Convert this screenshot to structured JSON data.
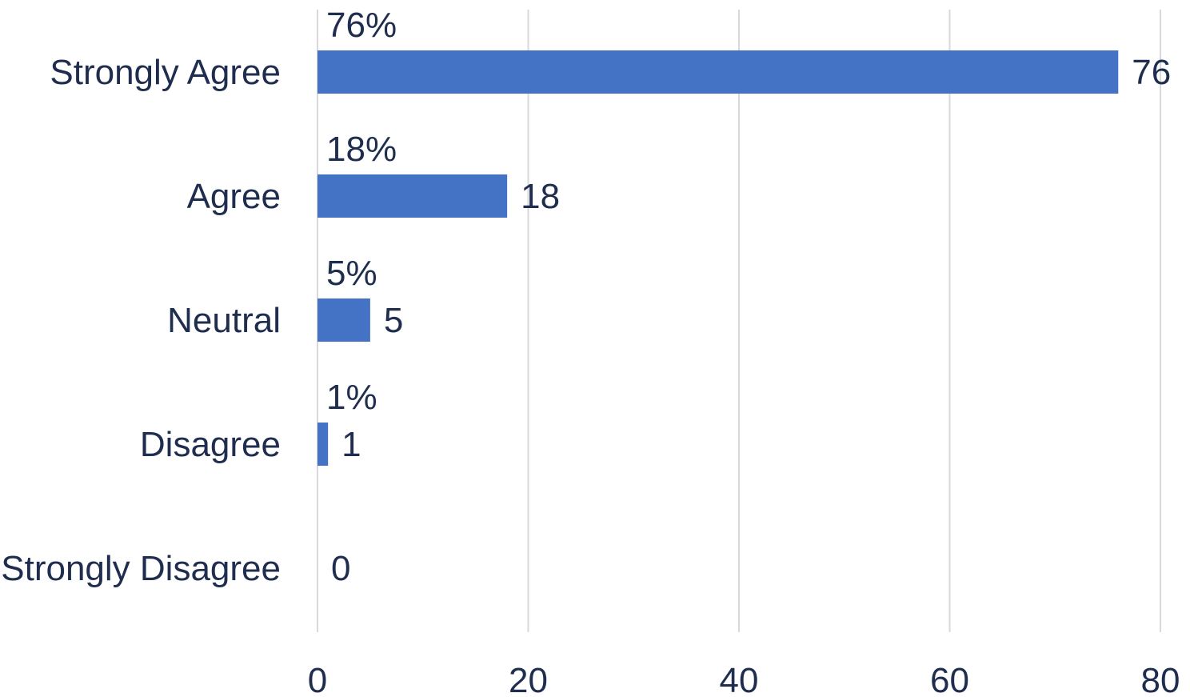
{
  "chart_data": {
    "type": "bar",
    "orientation": "horizontal",
    "title": "",
    "xlabel": "",
    "ylabel": "",
    "categories": [
      "Strongly Agree",
      "Agree",
      "Neutral",
      "Disagree",
      "Strongly Disagree"
    ],
    "values": [
      76,
      18,
      5,
      1,
      0
    ],
    "value_labels": [
      "76",
      "18",
      "5",
      "1",
      "0"
    ],
    "percent_labels": [
      "76%",
      "18%",
      "5%",
      "1%",
      ""
    ],
    "xlim": [
      0,
      80
    ],
    "xticks": [
      "0",
      "20",
      "40",
      "60",
      "80"
    ],
    "xtick_values": [
      0,
      20,
      40,
      60,
      80
    ],
    "grid": true,
    "legend": "none",
    "colors": {
      "bar": "#4472c4",
      "text": "#1f2d4e",
      "grid": "#d9d9d9"
    }
  }
}
